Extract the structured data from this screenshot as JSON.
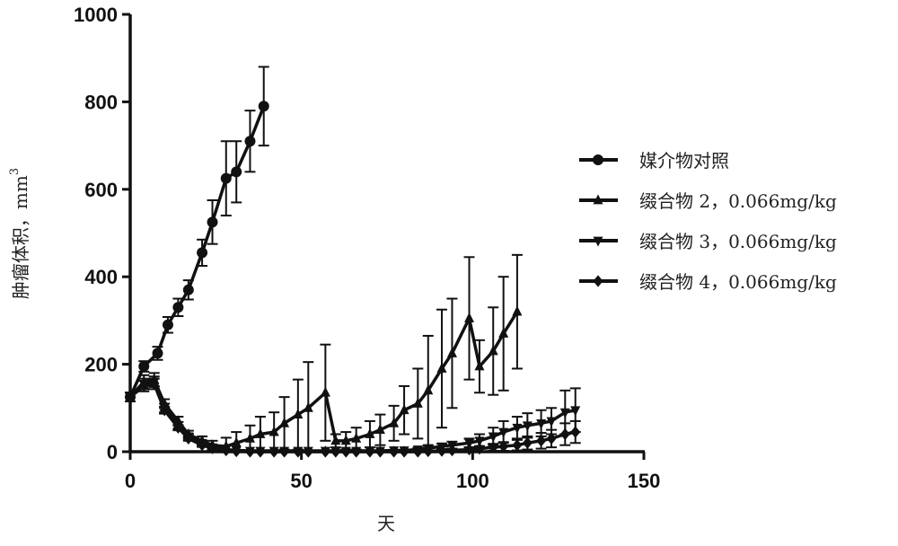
{
  "chart_data": {
    "type": "line",
    "title": "",
    "xlabel": "天",
    "ylabel": "肿瘤体积，mm³",
    "ylabel_main": "肿瘤体积，mm",
    "ylabel_sup": "3",
    "xlim": [
      0,
      150
    ],
    "ylim": [
      0,
      1000
    ],
    "xticks": [
      0,
      50,
      100,
      150
    ],
    "yticks": [
      0,
      200,
      400,
      600,
      800,
      1000
    ],
    "grid": false,
    "legend_position": "right",
    "series": [
      {
        "name": "媒介物对照",
        "marker": "circle",
        "x": [
          0,
          4,
          8,
          11,
          14,
          17,
          21,
          24,
          28,
          31,
          35,
          39
        ],
        "y": [
          125,
          195,
          225,
          290,
          330,
          370,
          455,
          525,
          625,
          640,
          710,
          790
        ],
        "err": [
          10,
          12,
          15,
          18,
          20,
          22,
          30,
          50,
          85,
          70,
          70,
          90
        ]
      },
      {
        "name": "缀合物 2，0.066mg/kg",
        "marker": "triangle-up",
        "x": [
          0,
          4,
          7,
          10,
          14,
          17,
          21,
          24,
          28,
          31,
          35,
          38,
          42,
          45,
          49,
          52,
          57,
          60,
          63,
          66,
          70,
          73,
          77,
          80,
          84,
          87,
          91,
          94,
          99,
          102,
          106,
          109,
          113
        ],
        "y": [
          125,
          160,
          165,
          110,
          70,
          40,
          25,
          15,
          12,
          20,
          30,
          40,
          45,
          65,
          85,
          100,
          135,
          25,
          25,
          30,
          40,
          50,
          65,
          95,
          110,
          140,
          190,
          225,
          305,
          195,
          230,
          270,
          320
        ],
        "err": [
          10,
          15,
          15,
          10,
          10,
          8,
          10,
          10,
          20,
          25,
          30,
          40,
          45,
          60,
          80,
          105,
          110,
          15,
          20,
          25,
          30,
          35,
          40,
          55,
          80,
          125,
          135,
          125,
          140,
          60,
          100,
          130,
          130
        ]
      },
      {
        "name": "缀合物 3，0.066mg/kg",
        "marker": "triangle-down",
        "x": [
          0,
          4,
          7,
          10,
          14,
          17,
          21,
          24,
          28,
          31,
          35,
          38,
          42,
          45,
          49,
          52,
          57,
          60,
          63,
          66,
          70,
          73,
          77,
          80,
          84,
          87,
          91,
          94,
          99,
          102,
          106,
          109,
          113,
          116,
          120,
          123,
          127,
          130
        ],
        "y": [
          125,
          155,
          160,
          100,
          60,
          35,
          20,
          10,
          5,
          3,
          2,
          2,
          2,
          2,
          2,
          2,
          2,
          2,
          2,
          2,
          2,
          2,
          3,
          3,
          5,
          8,
          12,
          15,
          20,
          25,
          35,
          45,
          55,
          60,
          65,
          70,
          90,
          95
        ],
        "err": [
          10,
          12,
          12,
          10,
          8,
          6,
          5,
          4,
          3,
          2,
          2,
          2,
          2,
          2,
          2,
          2,
          2,
          2,
          2,
          2,
          2,
          2,
          2,
          3,
          4,
          5,
          6,
          8,
          10,
          15,
          20,
          25,
          25,
          28,
          30,
          30,
          50,
          50
        ]
      },
      {
        "name": "缀合物 4，0.066mg/kg",
        "marker": "diamond",
        "x": [
          0,
          4,
          7,
          10,
          14,
          17,
          21,
          24,
          28,
          31,
          35,
          38,
          42,
          45,
          49,
          52,
          57,
          60,
          63,
          66,
          70,
          73,
          77,
          80,
          84,
          87,
          91,
          94,
          99,
          102,
          106,
          109,
          113,
          116,
          120,
          123,
          127,
          130
        ],
        "y": [
          125,
          150,
          155,
          95,
          55,
          30,
          15,
          8,
          3,
          1,
          0,
          0,
          0,
          0,
          0,
          0,
          0,
          0,
          0,
          0,
          0,
          0,
          0,
          0,
          0,
          1,
          2,
          3,
          5,
          7,
          10,
          12,
          15,
          20,
          25,
          30,
          40,
          45
        ],
        "err": [
          10,
          12,
          12,
          8,
          6,
          5,
          4,
          3,
          2,
          1,
          1,
          1,
          1,
          1,
          1,
          1,
          1,
          1,
          1,
          1,
          1,
          1,
          1,
          1,
          1,
          2,
          3,
          4,
          5,
          6,
          8,
          10,
          12,
          15,
          18,
          20,
          25,
          25
        ]
      }
    ]
  },
  "legend": {
    "items": [
      {
        "label": "媒介物对照",
        "marker": "circle"
      },
      {
        "label": "缀合物 2，0.066mg/kg",
        "marker": "triangle-up"
      },
      {
        "label": "缀合物 3，0.066mg/kg",
        "marker": "triangle-down"
      },
      {
        "label": "缀合物 4，0.066mg/kg",
        "marker": "diamond"
      }
    ]
  },
  "axes": {
    "x_title": "天",
    "y_title": "肿瘤体积，mm",
    "y_title_sup": "3"
  },
  "colors": {
    "line": "#111111",
    "background": "#ffffff"
  }
}
